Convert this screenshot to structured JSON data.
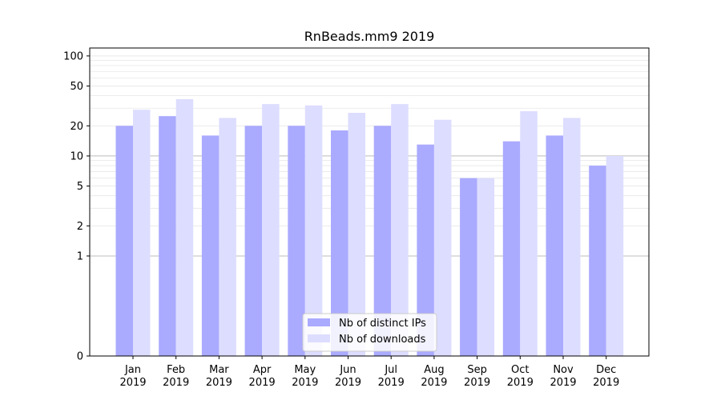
{
  "chart_data": {
    "type": "bar",
    "title": "RnBeads.mm9 2019",
    "xlabel": "",
    "ylabel": "",
    "y_scale": "symlog",
    "ylim": [
      0,
      120
    ],
    "y_ticks": [
      0,
      1,
      2,
      5,
      10,
      20,
      50,
      100
    ],
    "grid": true,
    "legend_position": "bottom-center",
    "categories": [
      [
        "Jan",
        "2019"
      ],
      [
        "Feb",
        "2019"
      ],
      [
        "Mar",
        "2019"
      ],
      [
        "Apr",
        "2019"
      ],
      [
        "May",
        "2019"
      ],
      [
        "Jun",
        "2019"
      ],
      [
        "Jul",
        "2019"
      ],
      [
        "Aug",
        "2019"
      ],
      [
        "Sep",
        "2019"
      ],
      [
        "Oct",
        "2019"
      ],
      [
        "Nov",
        "2019"
      ],
      [
        "Dec",
        "2019"
      ]
    ],
    "series": [
      {
        "name": "Nb of distinct IPs",
        "color": "#aaaaff",
        "values": [
          20,
          25,
          16,
          20,
          20,
          18,
          20,
          13,
          6,
          14,
          16,
          8
        ]
      },
      {
        "name": "Nb of downloads",
        "color": "#ddddff",
        "values": [
          29,
          37,
          24,
          33,
          32,
          27,
          33,
          23,
          6,
          28,
          24,
          10
        ]
      }
    ]
  }
}
